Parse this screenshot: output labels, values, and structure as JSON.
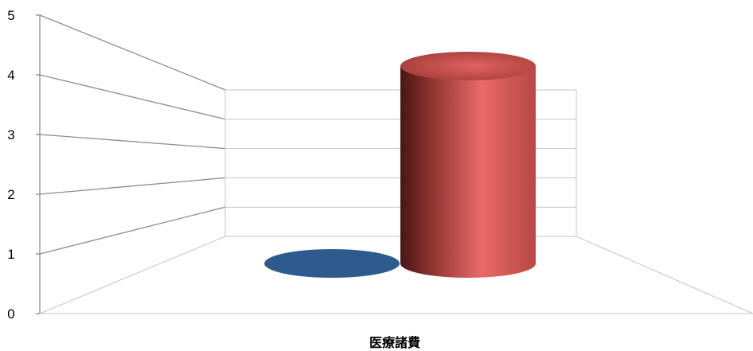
{
  "chart_data": {
    "type": "bar",
    "style": "3d-cylinder",
    "categories": [
      "医療諸費"
    ],
    "series": [
      {
        "values": [
          0
        ],
        "color": "#2e5b8e"
      },
      {
        "values": [
          4
        ],
        "color": "#c0504d"
      }
    ],
    "ylim": [
      0,
      5
    ],
    "yticks": [
      "0",
      "1",
      "2",
      "3",
      "4",
      "5"
    ],
    "grid": true
  }
}
